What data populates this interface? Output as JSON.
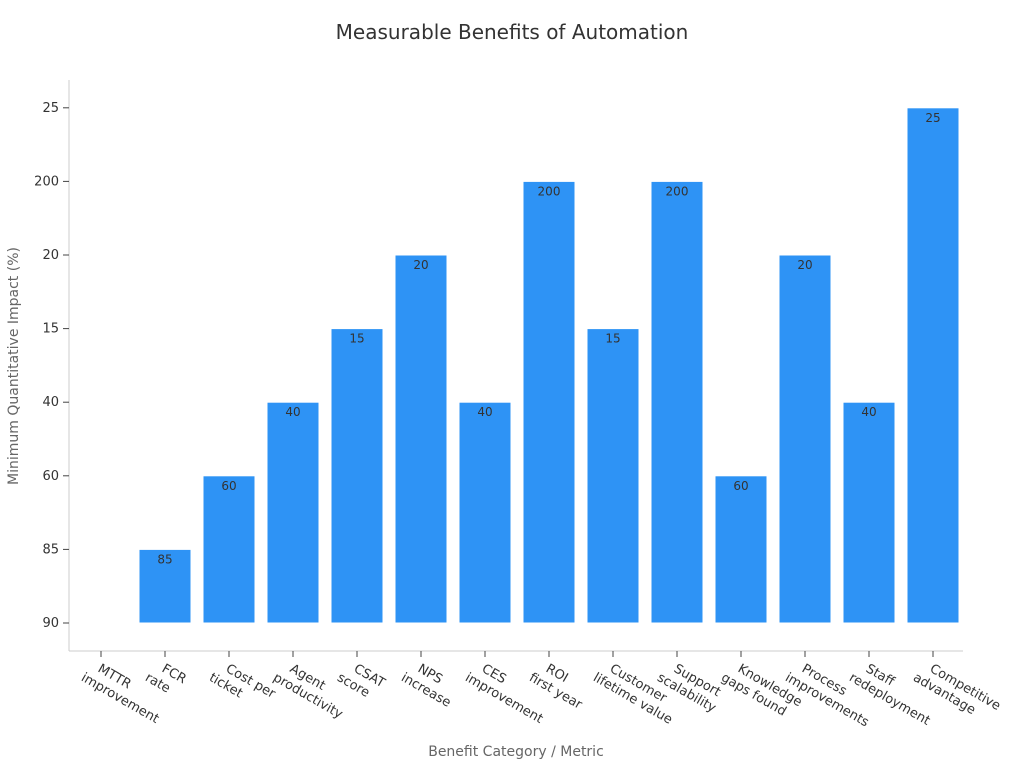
{
  "chart_data": {
    "type": "bar",
    "title": "Measurable Benefits of Automation",
    "xlabel": "Benefit Category / Metric",
    "ylabel": "Minimum Quantitative Impact (%)",
    "categories": [
      [
        "MTTR",
        "improvement"
      ],
      [
        "FCR",
        "rate"
      ],
      [
        "Cost per",
        "ticket"
      ],
      [
        "Agent",
        "productivity"
      ],
      [
        "CSAT",
        "score"
      ],
      [
        "NPS",
        "increase"
      ],
      [
        "CES",
        "improvement"
      ],
      [
        "ROI",
        "first year"
      ],
      [
        "Customer",
        "lifetime value"
      ],
      [
        "Support",
        "scalability"
      ],
      [
        "Knowledge",
        "gaps found"
      ],
      [
        "Process",
        "improvements"
      ],
      [
        "Staff",
        "redeployment"
      ],
      [
        "Competitive",
        "advantage"
      ]
    ],
    "values": [
      "90",
      "85",
      "60",
      "40",
      "15",
      "20",
      "40",
      "200",
      "15",
      "200",
      "60",
      "20",
      "40",
      "25"
    ],
    "y_axis_categories_bottom_to_top": [
      "90",
      "85",
      "60",
      "40",
      "15",
      "20",
      "200",
      "25"
    ],
    "data_labels": [
      "",
      "85",
      "60",
      "40",
      "15",
      "20",
      "40",
      "200",
      "15",
      "200",
      "60",
      "20",
      "40",
      "25"
    ],
    "grid": false,
    "legend": "none",
    "colors": {
      "bar": "#2e93f5",
      "bar_edge": "#ffffff",
      "axis": "#cccccc",
      "text": "#333333",
      "axis_title": "#666666"
    }
  }
}
